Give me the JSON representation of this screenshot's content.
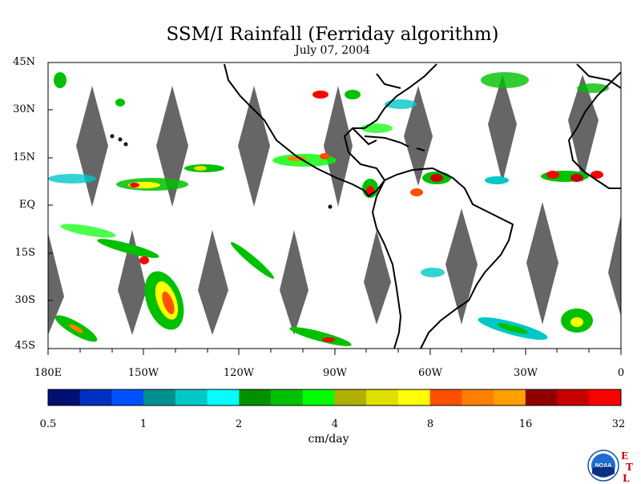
{
  "title": "SSM/I Rainfall (Ferriday algorithm)",
  "subtitle": "July 07, 2004",
  "colors": {
    "no_data_swath_gap": "#666666",
    "land_outline": "#000000"
  },
  "latitude_labels": [
    "45N",
    "30N",
    "15N",
    "EQ",
    "15S",
    "30S",
    "45S"
  ],
  "longitude_labels": [
    "180E",
    "150W",
    "120W",
    "90W",
    "60W",
    "30W",
    "0"
  ],
  "legend": {
    "unit": "cm/day",
    "tick_labels": [
      "0.5",
      "1",
      "2",
      "4",
      "8",
      "16",
      "32"
    ],
    "colors": [
      "#001070",
      "#0030c0",
      "#0050ff",
      "#009090",
      "#00c8c8",
      "#00ffff",
      "#009000",
      "#00c000",
      "#00ff00",
      "#b0b000",
      "#e0e000",
      "#ffff00",
      "#ff5000",
      "#ff8000",
      "#ffa000",
      "#900000",
      "#c80000",
      "#ff0000"
    ]
  },
  "logo": {
    "icon": "noaa-logo-icon",
    "text": "NOAA",
    "side_letters": [
      "E",
      "T",
      "L"
    ]
  }
}
